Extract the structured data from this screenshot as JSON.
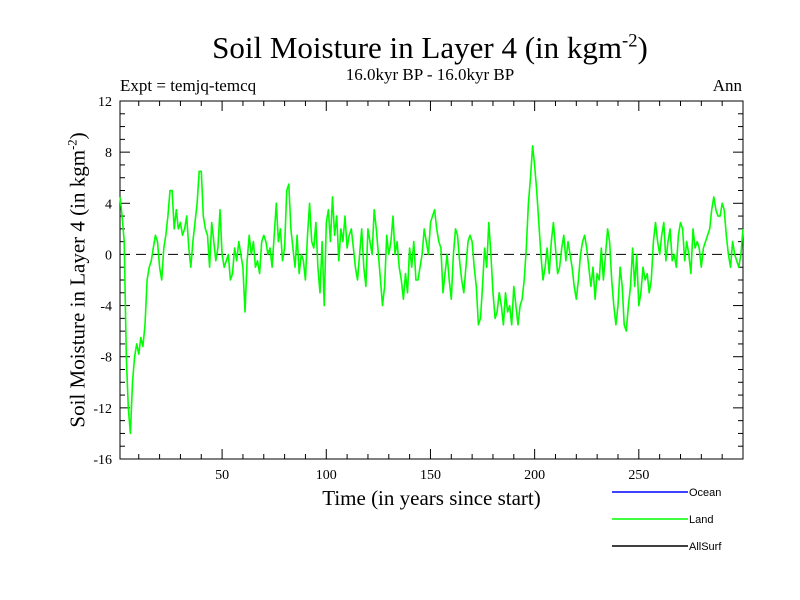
{
  "chart_data": {
    "type": "line",
    "title": "Soil Moisture in Layer 4 (in kgm",
    "title_sup": "-2",
    "title_end": ")",
    "subtitle": "16.0kyr BP - 16.0kyr BP",
    "expt_label": "Expt = temjq-temcq",
    "season": "Ann",
    "xlabel": "Time (in years since start)",
    "ylabel": "Soil Moisture in Layer 4 (in kgm",
    "ylabel_sup": "-2",
    "ylabel_end": ")",
    "xlim": [
      1,
      300
    ],
    "ylim": [
      -16,
      12
    ],
    "xticks": [
      50,
      100,
      150,
      200,
      250
    ],
    "yticks": [
      12,
      8,
      4,
      0,
      -4,
      -8,
      -12,
      -16
    ],
    "zero_line": 0,
    "series": [
      {
        "name": "Ocean",
        "color": "#0000ff",
        "values": []
      },
      {
        "name": "Land",
        "color": "#00ff00",
        "values": [
          4.5,
          3.0,
          1.0,
          -8.0,
          -12.0,
          -14.0,
          -10.0,
          -8.0,
          -7.0,
          -7.8,
          -6.5,
          -7.2,
          -5.5,
          -2.0,
          -1.0,
          -0.5,
          0.5,
          1.5,
          1.0,
          -1.0,
          -2.0,
          0.5,
          1.5,
          3.0,
          5.0,
          5.0,
          2.0,
          3.5,
          2.0,
          2.5,
          1.5,
          2.0,
          3.0,
          0.5,
          -1.0,
          1.0,
          2.5,
          4.0,
          6.5,
          6.5,
          3.0,
          2.0,
          1.5,
          -1.0,
          2.5,
          1.0,
          -0.5,
          0.5,
          3.5,
          0.0,
          -1.0,
          -0.5,
          0.0,
          -2.0,
          -1.5,
          0.5,
          -0.5,
          1.0,
          0.0,
          -1.0,
          -4.5,
          -0.5,
          1.5,
          0.0,
          1.0,
          -1.0,
          -0.5,
          -1.5,
          1.0,
          1.5,
          1.0,
          0.0,
          0.5,
          -1.0,
          1.5,
          4.0,
          1.0,
          2.0,
          -0.5,
          0.5,
          5.0,
          5.5,
          2.0,
          0.5,
          -1.0,
          1.5,
          -1.5,
          0.0,
          -0.5,
          -2.0,
          1.5,
          4.0,
          1.0,
          0.5,
          2.5,
          -1.0,
          -3.0,
          1.0,
          -4.0,
          2.5,
          3.5,
          1.0,
          4.5,
          1.5,
          3.0,
          -0.5,
          2.0,
          1.0,
          3.0,
          0.5,
          1.5,
          2.0,
          0.5,
          -1.0,
          -2.0,
          0.0,
          2.0,
          -1.0,
          -2.5,
          2.0,
          1.0,
          0.0,
          3.5,
          2.0,
          0.0,
          -2.0,
          -4.0,
          -2.5,
          1.5,
          0.0,
          1.0,
          3.0,
          0.0,
          1.0,
          -1.0,
          -2.0,
          -3.5,
          -1.5,
          -3.0,
          0.5,
          -1.0,
          1.0,
          -2.0,
          -2.0,
          -1.0,
          0.0,
          2.0,
          1.0,
          0.0,
          2.5,
          3.0,
          3.5,
          2.0,
          1.0,
          0.5,
          -3.0,
          -1.5,
          0.0,
          -2.0,
          -3.5,
          0.0,
          2.0,
          1.5,
          -0.5,
          -2.0,
          -3.0,
          -1.0,
          1.0,
          1.5,
          1.0,
          -1.0,
          -2.5,
          -5.5,
          -5.0,
          -2.5,
          0.5,
          -1.0,
          2.5,
          0.0,
          -3.0,
          -5.0,
          -4.5,
          -3.0,
          -4.0,
          -5.5,
          -3.0,
          -4.5,
          -4.0,
          -5.5,
          -2.5,
          -4.0,
          -5.5,
          -4.0,
          -3.5,
          -2.0,
          0.5,
          4.0,
          6.0,
          8.5,
          7.0,
          5.0,
          2.5,
          0.0,
          -2.0,
          -1.0,
          0.5,
          -1.5,
          1.0,
          2.5,
          0.5,
          -1.5,
          -1.0,
          0.5,
          1.5,
          -0.5,
          1.0,
          0.0,
          -1.0,
          -2.5,
          -3.5,
          -2.0,
          0.0,
          1.0,
          1.5,
          0.5,
          -1.0,
          -2.5,
          -1.0,
          -3.5,
          -1.5,
          -2.0,
          0.5,
          -2.0,
          0.0,
          2.0,
          1.0,
          -2.0,
          -4.0,
          -5.5,
          -4.0,
          -1.0,
          -2.5,
          -5.5,
          -6.0,
          -4.0,
          -2.5,
          0.5,
          -2.5,
          0.0,
          -4.0,
          -3.0,
          -1.0,
          -2.0,
          -1.5,
          -3.0,
          -2.0,
          1.0,
          2.5,
          1.0,
          0.0,
          1.5,
          2.5,
          -0.5,
          1.0,
          2.0,
          -0.5,
          0.0,
          -1.0,
          1.5,
          2.5,
          2.0,
          -0.5,
          1.0,
          0.0,
          -1.5,
          2.0,
          0.5,
          1.0,
          0.5,
          -1.0,
          0.5,
          1.0,
          1.5,
          2.0,
          3.5,
          4.5,
          3.5,
          3.0,
          3.0,
          4.0,
          3.5,
          1.5,
          0.0,
          -1.0,
          1.0,
          0.0,
          -0.5,
          -1.0,
          0.0,
          2.0
        ]
      },
      {
        "name": "AllSurf",
        "color": "#000000",
        "values": []
      }
    ],
    "line_color_land": "#00ff00",
    "legend_position": "bottom-right"
  }
}
